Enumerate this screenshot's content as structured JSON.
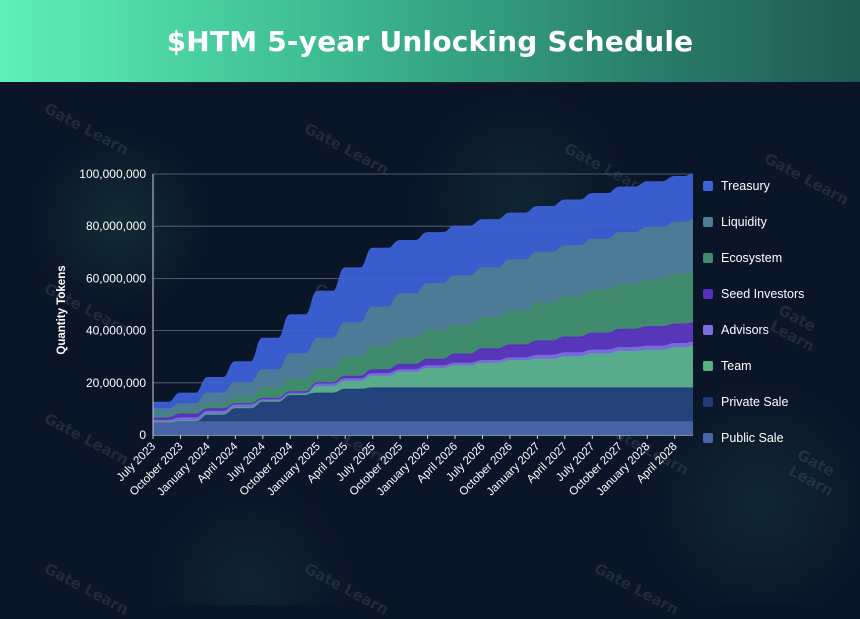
{
  "header": {
    "title": "$HTM 5-year Unlocking Schedule"
  },
  "watermark": "Gate Learn",
  "chart_data": {
    "type": "area",
    "stacked": true,
    "ylabel": "Quantity Tokens",
    "xlabel": "",
    "ylim": [
      0,
      100000000
    ],
    "yticks": [
      0,
      20000000,
      40000000,
      60000000,
      80000000,
      100000000
    ],
    "ytick_labels": [
      "0",
      "20,000,000",
      "40,000,000",
      "60,000,000",
      "80,000,000",
      "100,000,000"
    ],
    "grid": true,
    "legend_position": "right",
    "x_tick_labels": [
      "July 2023",
      "October 2023",
      "January 2024",
      "April 2024",
      "July 2024",
      "October 2024",
      "January 2025",
      "April 2025",
      "July 2025",
      "October 2025",
      "January 2026",
      "April 2026",
      "July 2026",
      "October 2026",
      "January 2027",
      "April 2027",
      "July 2027",
      "October 2027",
      "January 2028",
      "April 2028"
    ],
    "x_key_index": [
      0,
      3,
      6,
      9,
      12,
      15,
      18,
      21,
      24,
      27,
      30,
      33,
      36,
      39,
      42,
      45,
      48,
      51,
      54,
      57,
      59
    ],
    "series": [
      {
        "name": "Public Sale",
        "color": "#4a66a8",
        "cumulative_totals": [
          5000000,
          5000000,
          5000000,
          5000000,
          5000000,
          5000000,
          5000000,
          5000000,
          5000000,
          5000000,
          5000000,
          5000000,
          5000000,
          5000000,
          5000000,
          5000000,
          5000000,
          5000000,
          5000000,
          5000000,
          5000000
        ]
      },
      {
        "name": "Private Sale",
        "color": "#1f3a7a",
        "cumulative_totals": [
          5000000,
          5500000,
          8000000,
          10500000,
          13000000,
          15500000,
          16000000,
          17500000,
          18000000,
          18000000,
          18000000,
          18000000,
          18000000,
          18000000,
          18000000,
          18000000,
          18000000,
          18000000,
          18000000,
          18000000,
          18000000
        ]
      },
      {
        "name": "Team",
        "color": "#56b183",
        "cumulative_totals": [
          5000000,
          5500000,
          8000000,
          10500000,
          13000000,
          15500000,
          18500000,
          20500000,
          22500000,
          24000000,
          25500000,
          26500000,
          27500000,
          28500000,
          29000000,
          30000000,
          31000000,
          32000000,
          32500000,
          33500000,
          34000000
        ]
      },
      {
        "name": "Advisors",
        "color": "#7b6fe0",
        "cumulative_totals": [
          5500000,
          6500000,
          9000000,
          11500000,
          13500000,
          16000000,
          19500000,
          21500000,
          23500000,
          25000000,
          26500000,
          27500000,
          28500000,
          29500000,
          30500000,
          31500000,
          32500000,
          33500000,
          34000000,
          35000000,
          35500000
        ]
      },
      {
        "name": "Seed Investors",
        "color": "#5a2fc0",
        "cumulative_totals": [
          6500000,
          8000000,
          10000000,
          12000000,
          14000000,
          16500000,
          20000000,
          22500000,
          25000000,
          27000000,
          29000000,
          31000000,
          33000000,
          34500000,
          36000000,
          37500000,
          39000000,
          40500000,
          41500000,
          42500000,
          43000000
        ]
      },
      {
        "name": "Ecosystem",
        "color": "#3f8b6a",
        "cumulative_totals": [
          7500000,
          9000000,
          12000000,
          14500000,
          18000000,
          21500000,
          25500000,
          30000000,
          34000000,
          37000000,
          40000000,
          42000000,
          45000000,
          47500000,
          50500000,
          53000000,
          55500000,
          57500000,
          59500000,
          61500000,
          62500000
        ]
      },
      {
        "name": "Liquidity",
        "color": "#4e7d93",
        "cumulative_totals": [
          10000000,
          12000000,
          16000000,
          20000000,
          25000000,
          31000000,
          37000000,
          43000000,
          49000000,
          54000000,
          58000000,
          61000000,
          64000000,
          67000000,
          70000000,
          72500000,
          75000000,
          77500000,
          79500000,
          81500000,
          82500000
        ]
      },
      {
        "name": "Treasury",
        "color": "#3d63d9",
        "cumulative_totals": [
          12500000,
          16000000,
          22000000,
          28000000,
          37000000,
          46000000,
          55000000,
          64000000,
          71500000,
          74500000,
          77500000,
          80000000,
          82500000,
          85000000,
          87500000,
          90000000,
          92500000,
          95000000,
          97000000,
          99000000,
          100000000
        ]
      }
    ]
  }
}
